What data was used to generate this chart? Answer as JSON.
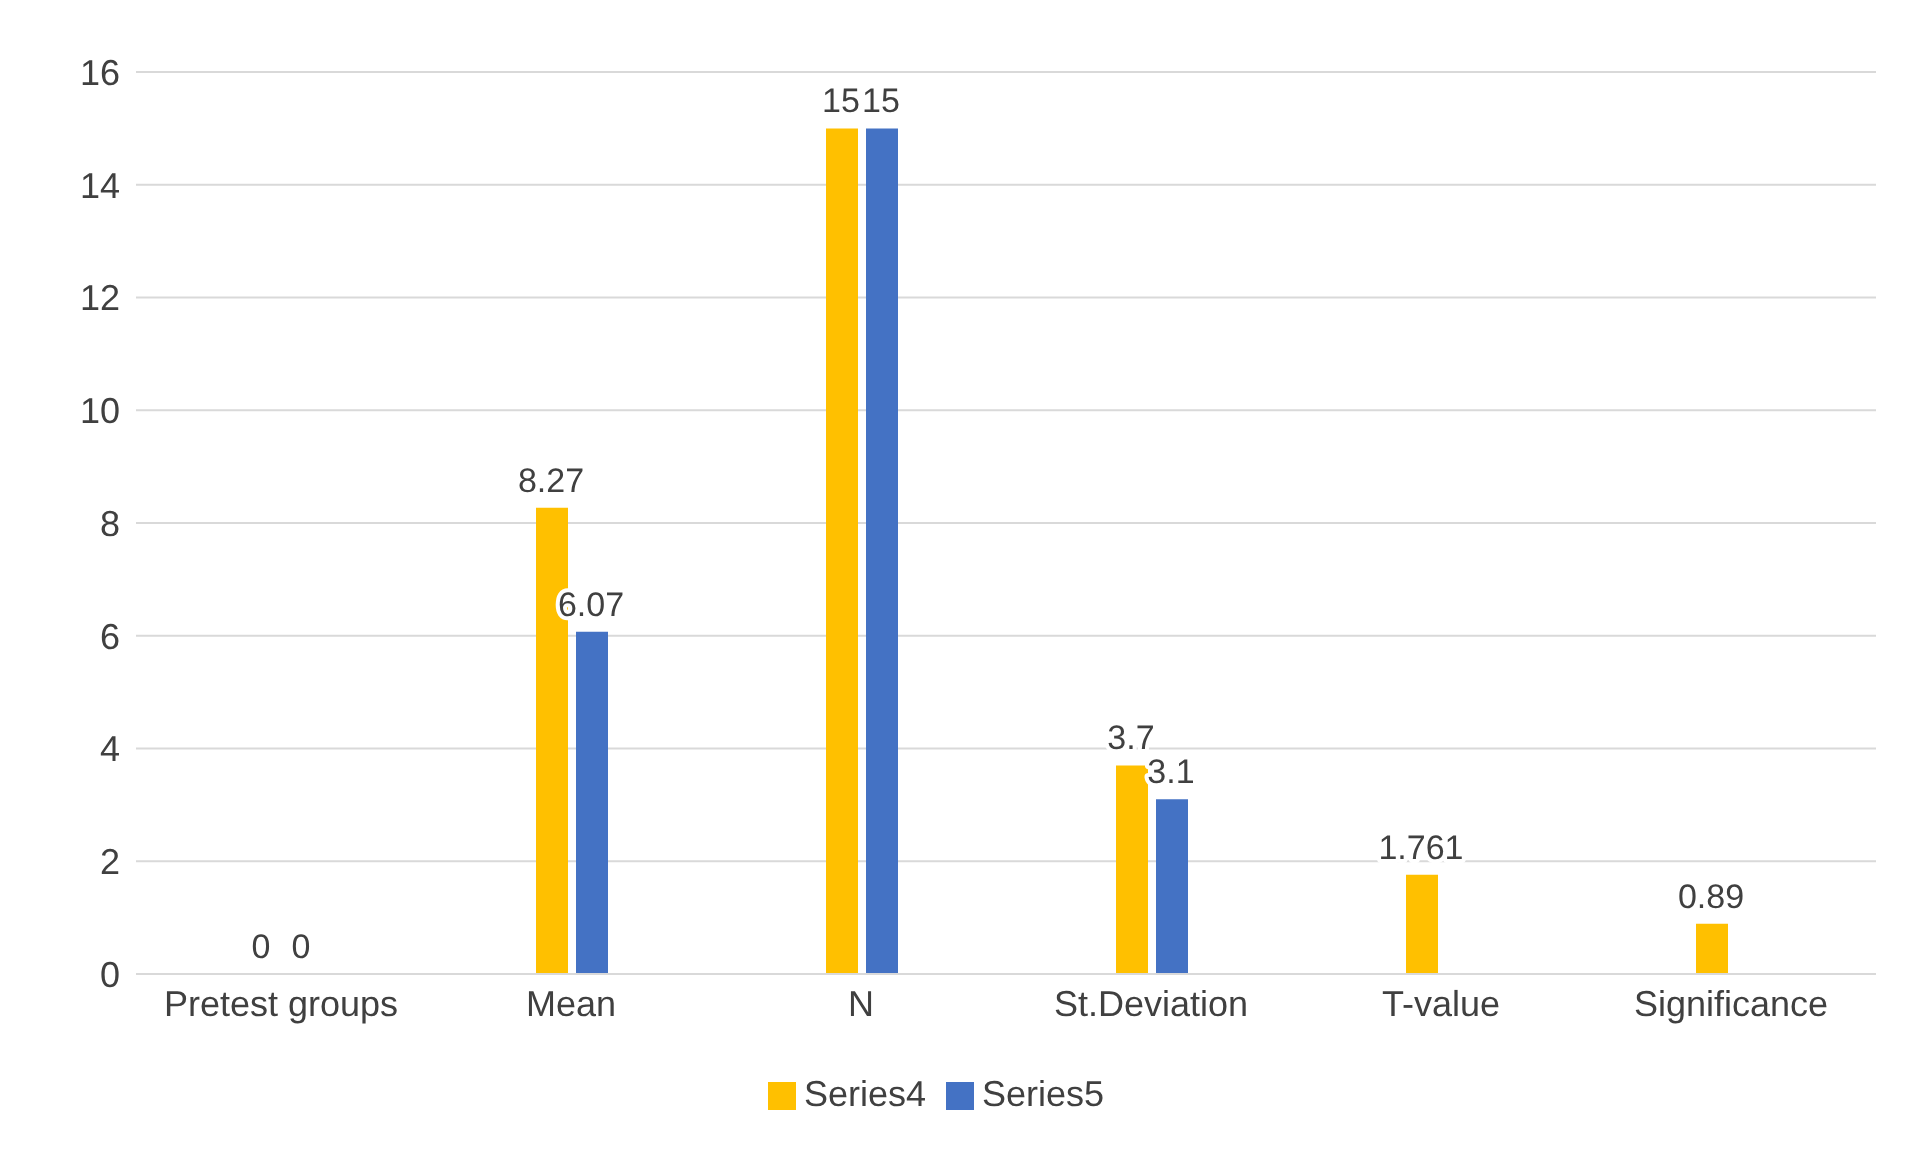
{
  "chart_data": {
    "type": "bar",
    "categories": [
      "Pretest groups",
      "Mean",
      "N",
      "St.Deviation",
      "T-value",
      "Significance"
    ],
    "series": [
      {
        "name": "Series4",
        "color": "#ffc000",
        "values": [
          0,
          8.27,
          15,
          3.7,
          1.761,
          0.89
        ]
      },
      {
        "name": "Series5",
        "color": "#4472c4",
        "values": [
          0,
          6.07,
          15,
          3.1,
          null,
          null
        ]
      }
    ],
    "ylim": [
      0,
      16
    ],
    "yticks": [
      0,
      2,
      4,
      6,
      8,
      10,
      12,
      14,
      16
    ],
    "grid": "y",
    "legend": "bottom",
    "data_labels": true
  }
}
